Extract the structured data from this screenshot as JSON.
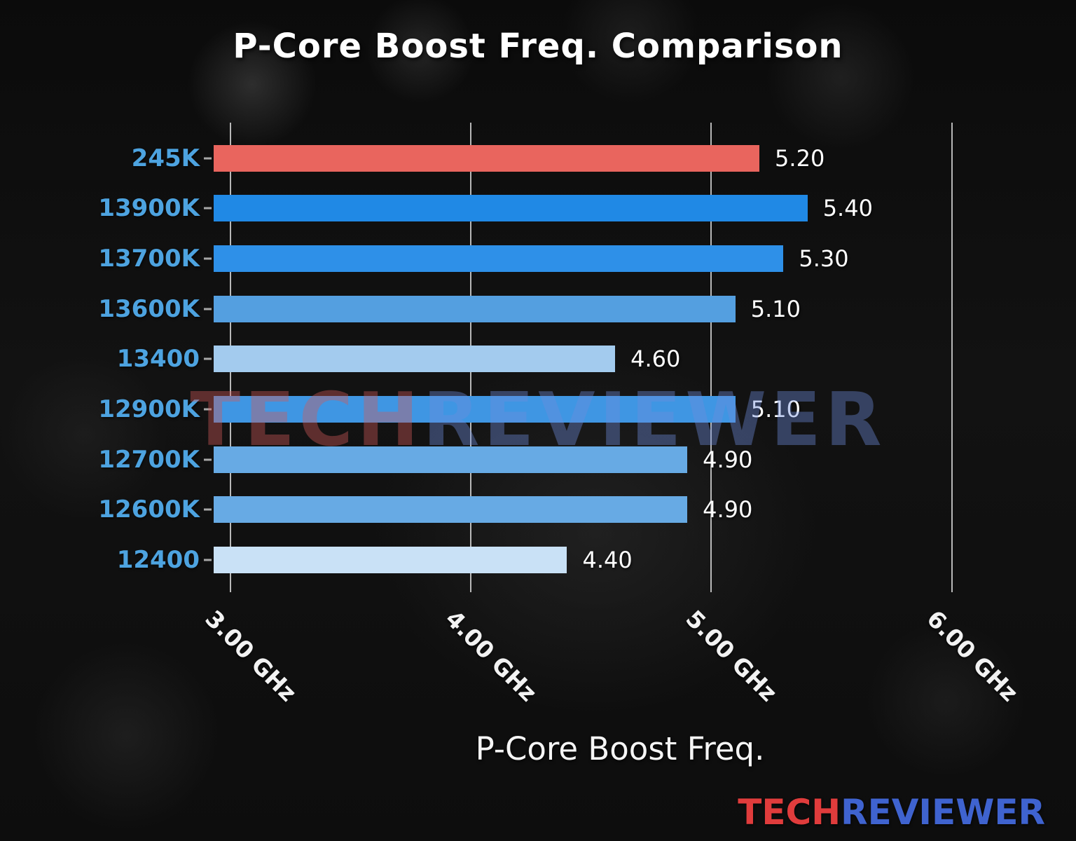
{
  "chart_data": {
    "type": "bar",
    "orientation": "horizontal",
    "title": "P-Core Boost Freq. Comparison",
    "xlabel": "P-Core Boost Freq.",
    "ylabel": "",
    "categories": [
      "245K",
      "13900K",
      "13700K",
      "13600K",
      "13400",
      "12900K",
      "12700K",
      "12600K",
      "12400"
    ],
    "values": [
      5.2,
      5.4,
      5.3,
      5.1,
      4.6,
      5.1,
      4.9,
      4.9,
      4.4
    ],
    "value_labels": [
      "5.20",
      "5.40",
      "5.30",
      "5.10",
      "4.60",
      "5.10",
      "4.90",
      "4.90",
      "4.40"
    ],
    "bar_colors": [
      "#e9655e",
      "#2089e5",
      "#2e90e8",
      "#549fe0",
      "#a3cbee",
      "#3f96e3",
      "#67aae4",
      "#67aae4",
      "#c9e1f6"
    ],
    "highlight_category": "245K",
    "highlight_color": "#e9655e",
    "category_label_color": "#4da3e0",
    "x_ticks": [
      {
        "value": 3,
        "label": "3.00 GHz"
      },
      {
        "value": 4,
        "label": "4.00 GHz"
      },
      {
        "value": 5,
        "label": "5.00 GHz"
      },
      {
        "value": 6,
        "label": "6.00 GHz"
      }
    ],
    "xlim": [
      2.93,
      6.31
    ],
    "grid": true,
    "legend": "none"
  },
  "watermark": {
    "part1": "TECH",
    "part2": "REVIEWER"
  },
  "logo": {
    "part1": "TECH",
    "part2": "REVIEWER",
    "part1_color": "#e03c3c",
    "part2_color": "#3f63cf"
  }
}
